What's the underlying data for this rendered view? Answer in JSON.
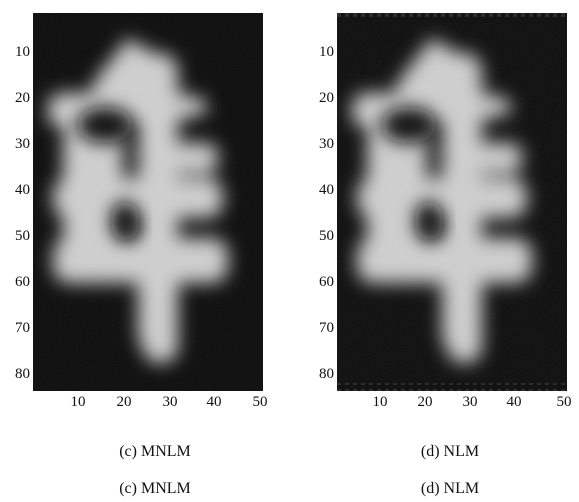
{
  "panels": [
    {
      "id": "mnlm",
      "y_ticks": [
        "10",
        "20",
        "30",
        "40",
        "50",
        "60",
        "70",
        "80"
      ],
      "x_ticks": [
        "10",
        "20",
        "30",
        "40",
        "50"
      ],
      "caption": "(c) MNLM"
    },
    {
      "id": "nlm",
      "y_ticks": [
        "10",
        "20",
        "30",
        "40",
        "50",
        "60",
        "70",
        "80"
      ],
      "x_ticks": [
        "10",
        "20",
        "30",
        "40",
        "50"
      ],
      "caption": "(d) NLM"
    }
  ],
  "captions_repeat": [
    "(c) MNLM",
    "(d) NLM"
  ]
}
